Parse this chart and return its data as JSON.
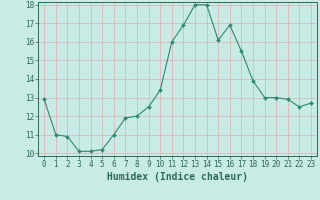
{
  "x": [
    0,
    1,
    2,
    3,
    4,
    5,
    6,
    7,
    8,
    9,
    10,
    11,
    12,
    13,
    14,
    15,
    16,
    17,
    18,
    19,
    20,
    21,
    22,
    23
  ],
  "y": [
    12.9,
    11.0,
    10.9,
    10.1,
    10.1,
    10.2,
    11.0,
    11.9,
    12.0,
    12.5,
    13.4,
    16.0,
    16.9,
    18.0,
    18.0,
    16.1,
    16.9,
    15.5,
    13.9,
    13.0,
    13.0,
    12.9,
    12.5,
    12.7
  ],
  "line_color": "#2d8a6e",
  "marker_color": "#2d8a6e",
  "bg_color": "#c8ebe5",
  "grid_color": "#dbb8b8",
  "xlabel": "Humidex (Indice chaleur)",
  "ylim": [
    10,
    18
  ],
  "xlim": [
    -0.5,
    23.5
  ],
  "yticks": [
    10,
    11,
    12,
    13,
    14,
    15,
    16,
    17,
    18
  ],
  "xticks": [
    0,
    1,
    2,
    3,
    4,
    5,
    6,
    7,
    8,
    9,
    10,
    11,
    12,
    13,
    14,
    15,
    16,
    17,
    18,
    19,
    20,
    21,
    22,
    23
  ],
  "tick_color": "#2d6b58",
  "label_color": "#2d6b58",
  "font_size": 5.5,
  "xlabel_fontsize": 7.0
}
